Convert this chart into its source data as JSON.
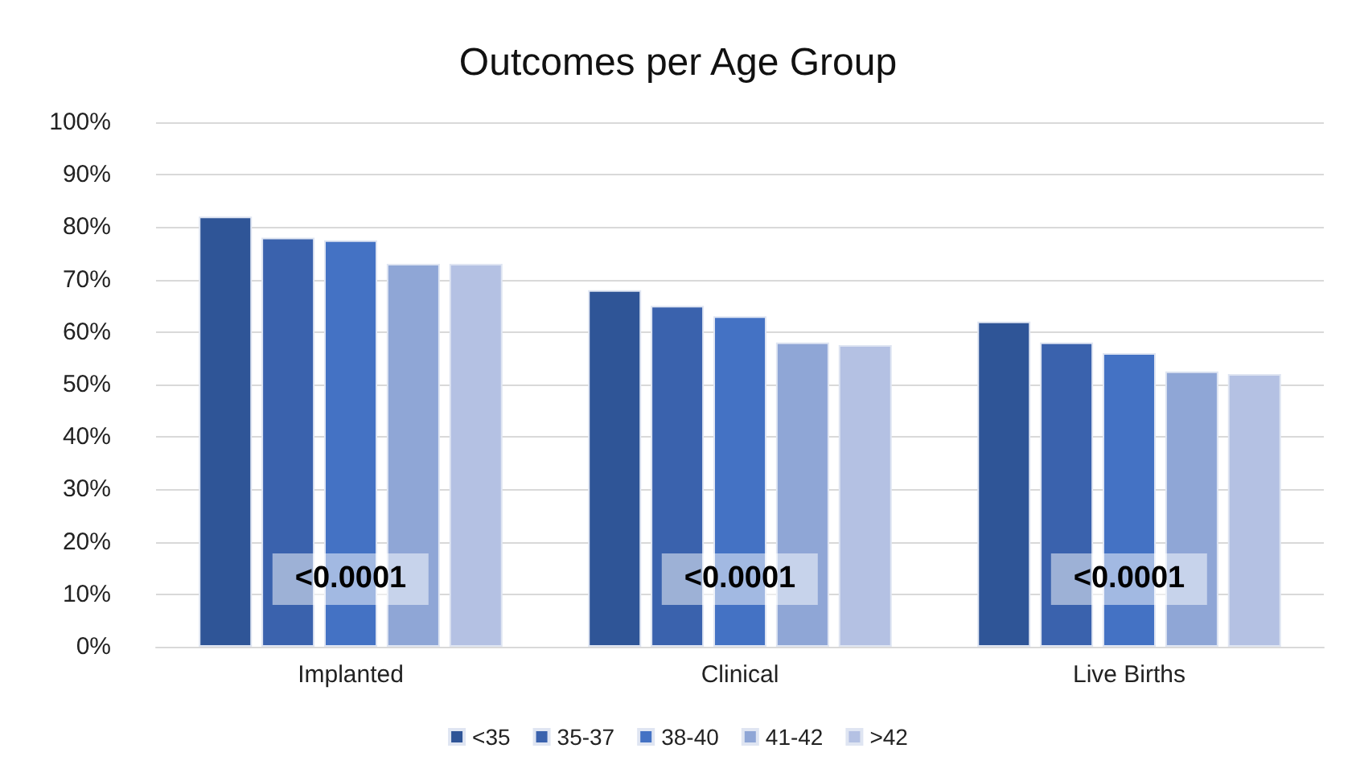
{
  "chart_data": {
    "type": "bar",
    "title": "Outcomes per Age Group",
    "categories": [
      "Implanted",
      "Clinical",
      "Live Births"
    ],
    "series": [
      {
        "name": "<35",
        "color": "#2f5597",
        "values": [
          82,
          68,
          62
        ]
      },
      {
        "name": "35-37",
        "color": "#3a62ad",
        "values": [
          78,
          65,
          58
        ]
      },
      {
        "name": "38-40",
        "color": "#4472c4",
        "values": [
          77.5,
          63,
          56
        ]
      },
      {
        "name": "41-42",
        "color": "#8fa6d6",
        "values": [
          73,
          58,
          52.5
        ]
      },
      {
        "name": ">42",
        "color": "#b4c1e3",
        "values": [
          73,
          57.5,
          52
        ]
      }
    ],
    "ylim": [
      0,
      100
    ],
    "yticks": [
      {
        "value": 0,
        "label": "0%"
      },
      {
        "value": 10,
        "label": "10%"
      },
      {
        "value": 20,
        "label": "20%"
      },
      {
        "value": 30,
        "label": "30%"
      },
      {
        "value": 40,
        "label": "40%"
      },
      {
        "value": 50,
        "label": "50%"
      },
      {
        "value": 60,
        "label": "60%"
      },
      {
        "value": 70,
        "label": "70%"
      },
      {
        "value": 80,
        "label": "80%"
      },
      {
        "value": 90,
        "label": "90%"
      },
      {
        "value": 100,
        "label": "100%"
      }
    ],
    "annotations": [
      "<0.0001",
      "<0.0001",
      "<0.0001"
    ],
    "grid": "y",
    "legend": "bottom"
  }
}
